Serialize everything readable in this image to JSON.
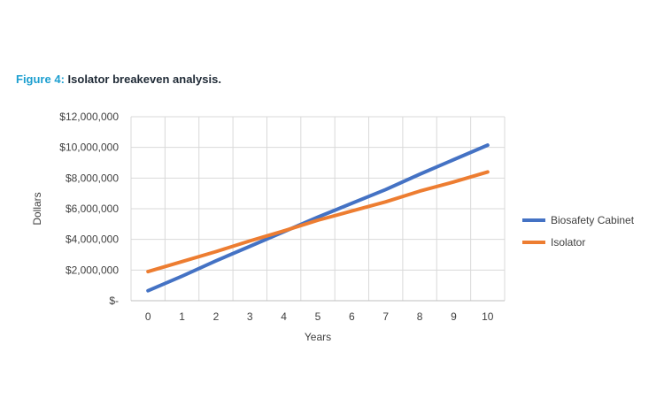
{
  "caption": {
    "label": "Figure 4:",
    "text": "Isolator breakeven analysis."
  },
  "chart_data": {
    "type": "line",
    "title": "",
    "xlabel": "Years",
    "ylabel": "Dollars",
    "x": [
      0,
      1,
      2,
      3,
      4,
      5,
      6,
      7,
      8,
      9,
      10
    ],
    "ylim": [
      0,
      12000000
    ],
    "yticks": [
      0,
      2000000,
      4000000,
      6000000,
      8000000,
      10000000,
      12000000
    ],
    "ytick_labels": [
      "$-",
      "$2,000,000",
      "$4,000,000",
      "$6,000,000",
      "$8,000,000",
      "$10,000,000",
      "$12,000,000"
    ],
    "grid": true,
    "legend_position": "right",
    "series": [
      {
        "name": "Biosafety Cabinet",
        "color": "#4472c4",
        "values": [
          650000,
          1600000,
          2600000,
          3550000,
          4500000,
          5450000,
          6350000,
          7250000,
          8250000,
          9200000,
          10150000
        ]
      },
      {
        "name": "Isolator",
        "color": "#ed7d31",
        "values": [
          1900000,
          2550000,
          3200000,
          3900000,
          4550000,
          5250000,
          5850000,
          6450000,
          7150000,
          7750000,
          8400000
        ]
      }
    ]
  }
}
